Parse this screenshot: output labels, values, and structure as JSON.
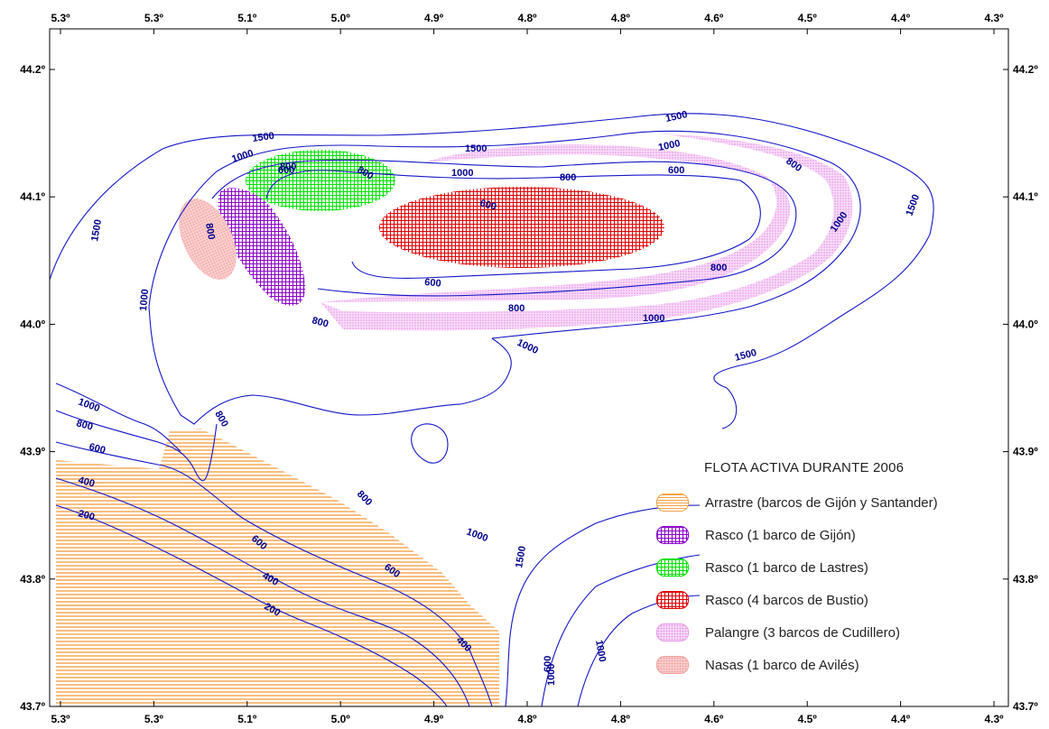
{
  "map": {
    "x_axis_ticks": [
      "5.3º",
      "5.3º",
      "5.1º",
      "5.0º",
      "4.9º",
      "4.8º",
      "4.8º",
      "4.6º",
      "4.5º",
      "4.4º",
      "4.3º"
    ],
    "y_axis_ticks": [
      "44.2º",
      "44.1º",
      "44.0º",
      "43.9º",
      "43.8º",
      "43.7º"
    ],
    "contour_labels": {
      "c1500_a": "1500",
      "c1500_b": "1500",
      "c1500_c": "1500",
      "c1500_d": "1500",
      "c1500_e": "1500",
      "c1500_f": "1500",
      "c1500_g": "1500",
      "c1000_a": "1000",
      "c1000_b": "1000",
      "c1000_c": "1000",
      "c1000_d": "1000",
      "c1000_e": "1000",
      "c1000_f": "1000",
      "c1000_g": "1000",
      "c1000_h": "1000",
      "c1000_i": "1000",
      "c1000_j": "1000",
      "c1000_k": "1000",
      "c800_a": "800",
      "c800_b": "800",
      "c800_c": "800",
      "c800_d": "800",
      "c800_e": "800",
      "c800_f": "800",
      "c800_g": "800",
      "c800_h": "800",
      "c800_i": "800",
      "c800_j": "800",
      "c800_k": "800",
      "c600_a": "600",
      "c600_b": "600",
      "c600_c": "600",
      "c600_d": "600",
      "c600_e": "600",
      "c600_f": "600",
      "c600_g": "600",
      "c600_h": "600",
      "c400_a": "400",
      "c400_b": "400",
      "c400_c": "400",
      "c200_a": "200",
      "c200_b": "200"
    }
  },
  "legend": {
    "title": "FLOTA ACTIVA DURANTE 2006",
    "items": [
      {
        "label": "Arrastre (barcos de Gijón y Santander)",
        "color": "#f5a24a",
        "pattern": "horizontal-stripes"
      },
      {
        "label": "Rasco (1 barco de Gijón)",
        "color": "#8a00c8",
        "pattern": "grid"
      },
      {
        "label": "Rasco (1 barco de Lastres)",
        "color": "#00e000",
        "pattern": "grid"
      },
      {
        "label": "Rasco (4 barcos de Bustio)",
        "color": "#e00000",
        "pattern": "grid"
      },
      {
        "label": "Palangre (3 barcos de Cudillero)",
        "color": "#e89ae8",
        "pattern": "dots"
      },
      {
        "label": "Nasas (1 barco de Avilés)",
        "color": "#f0a0a0",
        "pattern": "dots"
      }
    ]
  }
}
